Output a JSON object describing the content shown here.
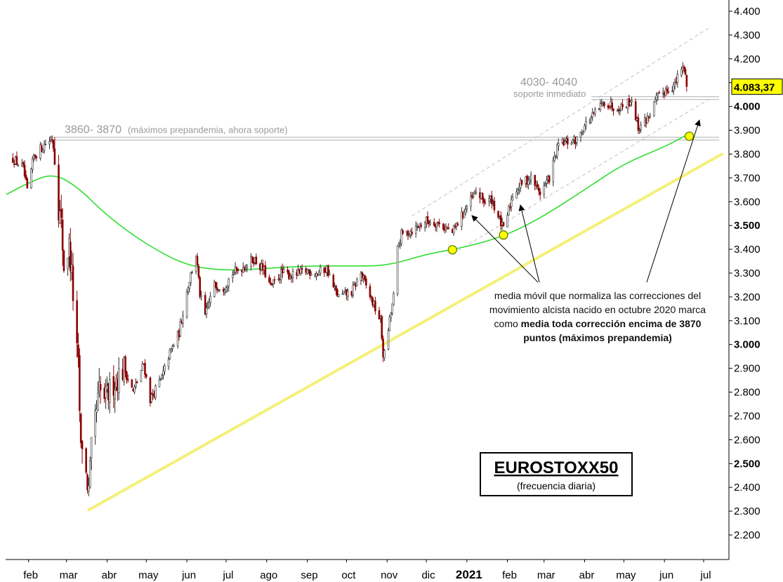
{
  "chart_data": {
    "type": "candlestick",
    "title": "EUROSTOXX50",
    "subtitle": "(frecuencia diaria)",
    "frequency": "daily",
    "x_labels": [
      "feb",
      "mar",
      "abr",
      "may",
      "jun",
      "jul",
      "ago",
      "sep",
      "oct",
      "nov",
      "dic",
      "2021",
      "feb",
      "mar",
      "abr",
      "may",
      "jun",
      "jul"
    ],
    "y_ticks": [
      2200,
      2300,
      2400,
      2500,
      2600,
      2700,
      2800,
      2900,
      3000,
      3100,
      3200,
      3300,
      3400,
      3500,
      3600,
      3700,
      3800,
      3900,
      4000,
      4100,
      4200,
      4300,
      4400
    ],
    "y_tick_labels": [
      "2.200",
      "2.300",
      "2.400",
      "2.500",
      "2.600",
      "2.700",
      "2.800",
      "2.900",
      "3.000",
      "3.100",
      "3.200",
      "3.300",
      "3.400",
      "3.500",
      "3.600",
      "3.700",
      "3.800",
      "3.900",
      "4.000",
      "4.100",
      "4.200",
      "4.300",
      "4.400"
    ],
    "y_major_ticks": [
      2500,
      3000,
      3500,
      4000
    ],
    "ylim": [
      2130,
      4440
    ],
    "last_price": 4083.37,
    "last_price_label": "4.083,37",
    "price_path": [
      [
        "2020-01-20",
        3780
      ],
      [
        "2020-01-24",
        3760
      ],
      [
        "2020-01-28",
        3740
      ],
      [
        "2020-01-31",
        3640
      ],
      [
        "2020-02-05",
        3790
      ],
      [
        "2020-02-10",
        3820
      ],
      [
        "2020-02-14",
        3845
      ],
      [
        "2020-02-19",
        3865
      ],
      [
        "2020-02-21",
        3800
      ],
      [
        "2020-02-24",
        3580
      ],
      [
        "2020-02-26",
        3500
      ],
      [
        "2020-02-28",
        3330
      ],
      [
        "2020-03-03",
        3410
      ],
      [
        "2020-03-05",
        3290
      ],
      [
        "2020-03-09",
        2960
      ],
      [
        "2020-03-10",
        2900
      ],
      [
        "2020-03-12",
        2545
      ],
      [
        "2020-03-13",
        2590
      ],
      [
        "2020-03-16",
        2450
      ],
      [
        "2020-03-18",
        2380
      ],
      [
        "2020-03-20",
        2550
      ],
      [
        "2020-03-24",
        2720
      ],
      [
        "2020-03-26",
        2800
      ],
      [
        "2020-03-31",
        2770
      ],
      [
        "2020-04-06",
        2840
      ],
      [
        "2020-04-14",
        2900
      ],
      [
        "2020-04-21",
        2800
      ],
      [
        "2020-04-29",
        2920
      ],
      [
        "2020-05-04",
        2770
      ],
      [
        "2020-05-13",
        2860
      ],
      [
        "2020-05-18",
        2950
      ],
      [
        "2020-05-26",
        3050
      ],
      [
        "2020-06-02",
        3250
      ],
      [
        "2020-06-08",
        3380
      ],
      [
        "2020-06-11",
        3210
      ],
      [
        "2020-06-15",
        3120
      ],
      [
        "2020-06-22",
        3250
      ],
      [
        "2020-06-29",
        3240
      ],
      [
        "2020-07-06",
        3300
      ],
      [
        "2020-07-15",
        3330
      ],
      [
        "2020-07-22",
        3360
      ],
      [
        "2020-07-30",
        3310
      ],
      [
        "2020-08-04",
        3240
      ],
      [
        "2020-08-12",
        3300
      ],
      [
        "2020-08-21",
        3290
      ],
      [
        "2020-09-01",
        3310
      ],
      [
        "2020-09-09",
        3300
      ],
      [
        "2020-09-16",
        3320
      ],
      [
        "2020-09-21",
        3240
      ],
      [
        "2020-09-25",
        3200
      ],
      [
        "2020-10-05",
        3220
      ],
      [
        "2020-10-12",
        3300
      ],
      [
        "2020-10-20",
        3190
      ],
      [
        "2020-10-27",
        3100
      ],
      [
        "2020-10-29",
        2960
      ],
      [
        "2020-10-30",
        2960
      ],
      [
        "2020-11-03",
        3100
      ],
      [
        "2020-11-06",
        3200
      ],
      [
        "2020-11-09",
        3400
      ],
      [
        "2020-11-12",
        3460
      ],
      [
        "2020-11-20",
        3480
      ],
      [
        "2020-12-01",
        3520
      ],
      [
        "2020-12-10",
        3510
      ],
      [
        "2020-12-21",
        3470
      ],
      [
        "2020-12-30",
        3560
      ],
      [
        "2021-01-08",
        3640
      ],
      [
        "2021-01-15",
        3600
      ],
      [
        "2021-01-20",
        3610
      ],
      [
        "2021-01-29",
        3480
      ],
      [
        "2021-02-05",
        3630
      ],
      [
        "2021-02-12",
        3680
      ],
      [
        "2021-02-19",
        3700
      ],
      [
        "2021-02-26",
        3640
      ],
      [
        "2021-03-05",
        3700
      ],
      [
        "2021-03-12",
        3840
      ],
      [
        "2021-03-19",
        3850
      ],
      [
        "2021-03-26",
        3860
      ],
      [
        "2021-04-01",
        3920
      ],
      [
        "2021-04-09",
        3970
      ],
      [
        "2021-04-16",
        4020
      ],
      [
        "2021-04-23",
        4000
      ],
      [
        "2021-04-30",
        4000
      ],
      [
        "2021-05-07",
        4030
      ],
      [
        "2021-05-12",
        3910
      ],
      [
        "2021-05-19",
        3950
      ],
      [
        "2021-05-26",
        4030
      ],
      [
        "2021-06-02",
        4070
      ],
      [
        "2021-06-09",
        4090
      ],
      [
        "2021-06-14",
        4160
      ],
      [
        "2021-06-17",
        4150
      ],
      [
        "2021-06-18",
        4083
      ]
    ],
    "moving_average": [
      [
        "2020-01-15",
        3630
      ],
      [
        "2020-02-01",
        3680
      ],
      [
        "2020-02-20",
        3720
      ],
      [
        "2020-03-10",
        3660
      ],
      [
        "2020-04-01",
        3540
      ],
      [
        "2020-05-01",
        3420
      ],
      [
        "2020-06-01",
        3330
      ],
      [
        "2020-07-01",
        3310
      ],
      [
        "2020-08-01",
        3320
      ],
      [
        "2020-09-01",
        3330
      ],
      [
        "2020-10-01",
        3330
      ],
      [
        "2020-11-01",
        3330
      ],
      [
        "2020-12-01",
        3380
      ],
      [
        "2021-01-01",
        3410
      ],
      [
        "2021-02-01",
        3460
      ],
      [
        "2021-03-01",
        3540
      ],
      [
        "2021-04-01",
        3650
      ],
      [
        "2021-05-01",
        3760
      ],
      [
        "2021-06-01",
        3830
      ],
      [
        "2021-06-18",
        3880
      ]
    ],
    "uptrend_line": [
      [
        "2020-03-18",
        2305
      ],
      [
        "2021-07-15",
        3800
      ]
    ],
    "resistance_lines": [
      {
        "y": 3865,
        "label_value": "3860- 3870",
        "label_note": "(máximos prepandemia, ahora soporte)"
      },
      {
        "y": 4035,
        "label_value": "4030- 4040",
        "label_note": "soporte inmediato"
      }
    ],
    "touch_points": [
      [
        "2020-12-21",
        3398
      ],
      [
        "2021-01-29",
        3460
      ],
      [
        "2021-06-20",
        3875
      ]
    ],
    "annotation": {
      "lines": [
        [
          {
            "t": "media móvil que normaliza las correcciones del",
            "b": false
          }
        ],
        [
          {
            "t": "movimiento alcista nacido en octubre 2020 marca",
            "b": false
          }
        ],
        [
          {
            "t": "como ",
            "b": false
          },
          {
            "t": "media toda corrección encima de 3870",
            "b": true
          }
        ],
        [
          {
            "t": "puntos (máximos prepandemia)",
            "b": true
          }
        ]
      ]
    },
    "colors": {
      "moving_average": "#33dd33",
      "uptrend_line": "#f4f07a",
      "touch_point": "#ffff00",
      "bull_candle": "#2b2b2b",
      "bear_candle": "#8b0000",
      "price_box": "#ffff00",
      "channel": "#bfbfbf"
    }
  }
}
